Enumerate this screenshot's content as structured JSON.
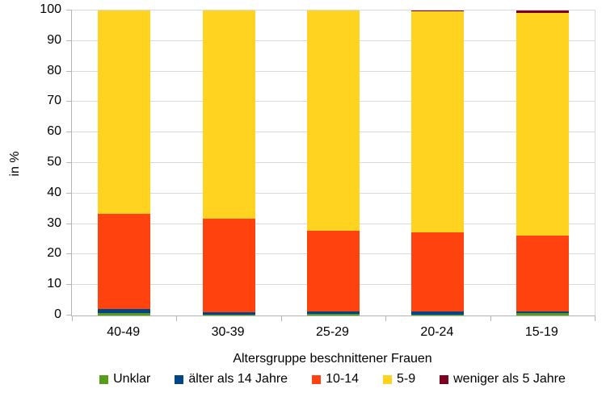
{
  "chart_data": {
    "type": "bar",
    "stacked": true,
    "categories": [
      "40-49",
      "30-39",
      "25-29",
      "20-24",
      "15-19"
    ],
    "series": [
      {
        "name": "Unklar",
        "color": "#579D1C",
        "values": [
          0.7,
          0.4,
          0.5,
          0.4,
          0.7
        ]
      },
      {
        "name": "älter als 14 Jahre",
        "color": "#004586",
        "values": [
          1.4,
          0.7,
          0.9,
          0.8,
          0.5
        ]
      },
      {
        "name": "10-14",
        "color": "#FF420E",
        "values": [
          31.3,
          30.7,
          26.4,
          26.0,
          24.9
        ]
      },
      {
        "name": "5-9",
        "color": "#FFD320",
        "values": [
          66.6,
          68.2,
          72.2,
          72.5,
          73.1
        ]
      },
      {
        "name": "weniger als 5 Jahre",
        "color": "#7E0021",
        "values": [
          0.0,
          0.0,
          0.0,
          0.3,
          0.8
        ]
      }
    ],
    "xlabel": "Altersgruppe beschnittener Frauen",
    "ylabel": "in %",
    "ylim": [
      0,
      100
    ],
    "yticks": [
      0,
      10,
      20,
      30,
      40,
      50,
      60,
      70,
      80,
      90,
      100
    ],
    "grid": true,
    "grid_color": "#d9d9d9",
    "axis_color": "#b3b3b3",
    "legend_position": "bottom"
  }
}
